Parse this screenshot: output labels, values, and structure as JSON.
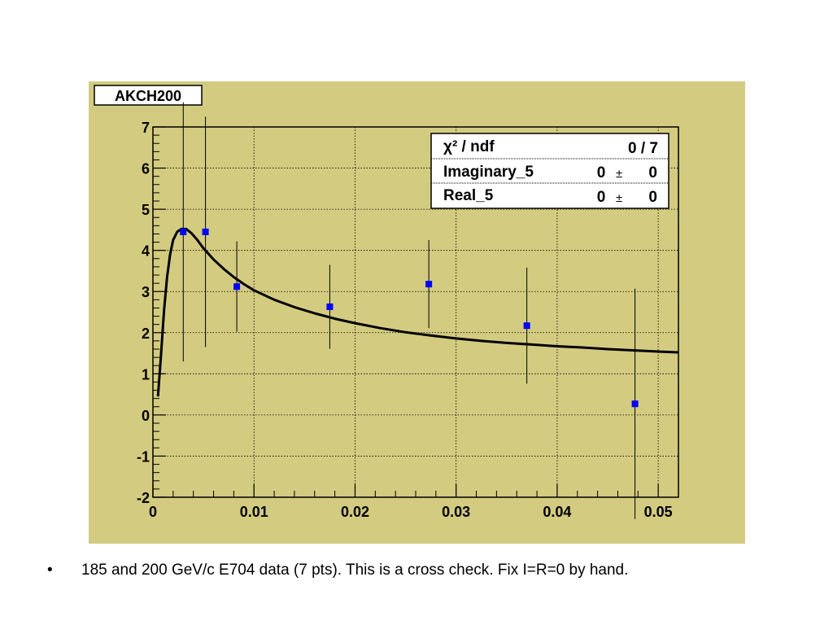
{
  "histogram_title": "AKCH200",
  "stats_box": {
    "rows": [
      {
        "label": "χ² / ndf",
        "value": "0 / 7"
      },
      {
        "label": "Imaginary_5",
        "value": "0",
        "pm": "±",
        "error": "0"
      },
      {
        "label": "Real_5",
        "value": "0",
        "pm": "±",
        "error": "0"
      }
    ]
  },
  "caption": {
    "bullet": "•",
    "text": "185 and 200 GeV/c E704 data (7 pts).  This is a cross check.  Fix I=R=0 by hand."
  },
  "colors": {
    "canvas": "#d3cb80",
    "marker": "#0000ff",
    "curve": "#000000",
    "error_bar": "#000000",
    "grid": "#000000"
  },
  "chart_data": {
    "type": "scatter",
    "title": "AKCH200",
    "xlabel": "",
    "ylabel": "",
    "xlim": [
      0,
      0.052
    ],
    "ylim": [
      -2,
      7
    ],
    "grid": true,
    "legend": "top-right stats box",
    "x_ticks": [
      0,
      0.01,
      0.02,
      0.03,
      0.04,
      0.05
    ],
    "x_tick_labels": [
      "0",
      "0.01",
      "0.02",
      "0.03",
      "0.04",
      "0.05"
    ],
    "y_ticks": [
      -2,
      -1,
      0,
      1,
      2,
      3,
      4,
      5,
      6,
      7
    ],
    "y_tick_labels": [
      "-2",
      "-1",
      "0",
      "1",
      "2",
      "3",
      "4",
      "5",
      "6",
      "7"
    ],
    "series": [
      {
        "type": "scatter",
        "x": [
          0.003,
          0.0052,
          0.0083,
          0.0175,
          0.0273,
          0.037,
          0.0477
        ],
        "y": [
          4.45,
          4.45,
          3.12,
          2.63,
          3.18,
          2.17,
          0.27
        ],
        "yerr": [
          3.15,
          2.8,
          1.1,
          1.02,
          1.07,
          1.41,
          2.8
        ]
      },
      {
        "type": "line",
        "x": [
          0.0005,
          0.0008,
          0.0011,
          0.0014,
          0.0017,
          0.002,
          0.0024,
          0.0028,
          0.0033,
          0.0038,
          0.0044,
          0.005,
          0.006,
          0.007,
          0.008,
          0.009,
          0.01,
          0.012,
          0.014,
          0.016,
          0.018,
          0.02,
          0.0225,
          0.025,
          0.0275,
          0.03,
          0.0325,
          0.035,
          0.0375,
          0.04,
          0.0425,
          0.045,
          0.0475,
          0.05,
          0.052
        ],
        "y": [
          0.45,
          1.45,
          2.55,
          3.35,
          3.9,
          4.25,
          4.45,
          4.52,
          4.52,
          4.42,
          4.25,
          4.05,
          3.78,
          3.55,
          3.35,
          3.18,
          3.03,
          2.8,
          2.62,
          2.47,
          2.34,
          2.23,
          2.11,
          2.01,
          1.93,
          1.86,
          1.8,
          1.75,
          1.71,
          1.67,
          1.64,
          1.6,
          1.57,
          1.54,
          1.52
        ]
      }
    ]
  }
}
